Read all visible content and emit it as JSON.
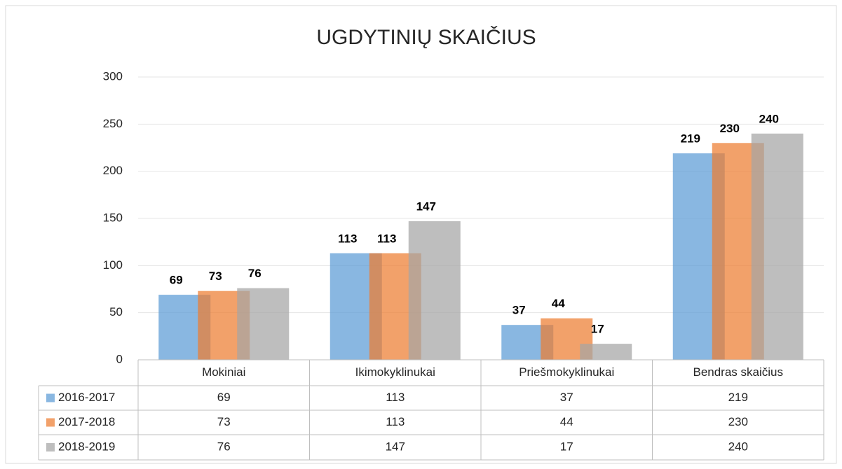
{
  "chart_data": {
    "type": "bar",
    "title": "UGDYTINIŲ SKAIČIUS",
    "categories": [
      "Mokiniai",
      "Ikimokyklinukai",
      "Priešmokyklinukai",
      "Bendras skaičius"
    ],
    "series": [
      {
        "name": "2016-2017",
        "color": "#5b9bd5",
        "values": [
          69,
          113,
          37,
          219
        ]
      },
      {
        "name": "2017-2018",
        "color": "#ed7d31",
        "values": [
          73,
          113,
          44,
          230
        ]
      },
      {
        "name": "2018-2019",
        "color": "#a5a5a5",
        "values": [
          76,
          147,
          17,
          240
        ]
      }
    ],
    "ylim": [
      0,
      300
    ],
    "yticks": [
      0,
      50,
      100,
      150,
      200,
      250,
      300
    ],
    "grid": true
  }
}
